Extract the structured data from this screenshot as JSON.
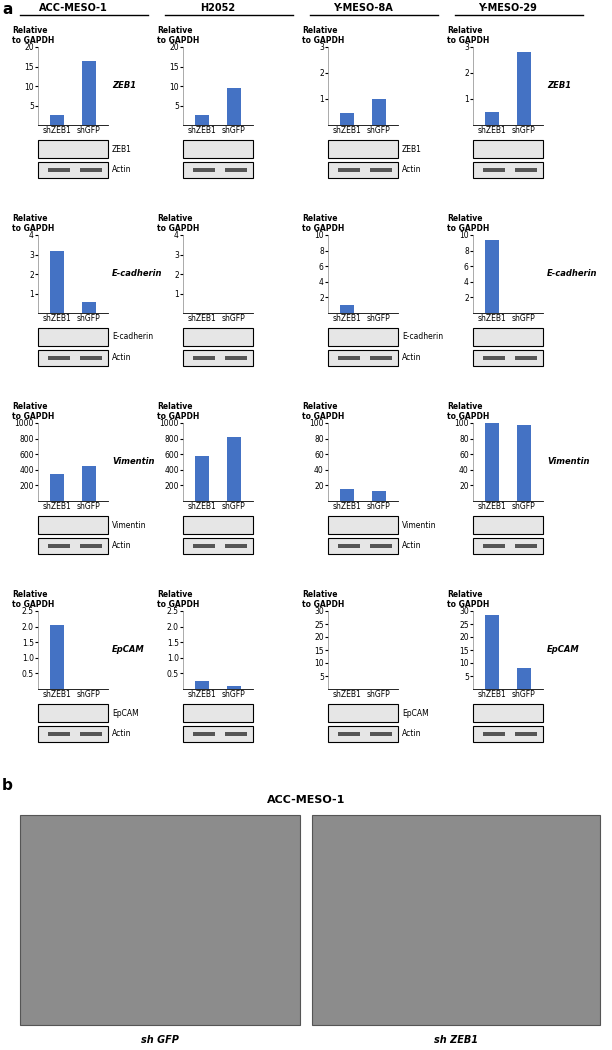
{
  "panel_labels": [
    "a",
    "b"
  ],
  "columns": [
    "ACC-MESO-1",
    "H2052",
    "Y-MESO-8A",
    "Y-MESO-29"
  ],
  "rows": [
    {
      "gene": "ZEB1",
      "blots": [
        "ZEB1",
        "Actin"
      ]
    },
    {
      "gene": "E-cadherin",
      "blots": [
        "E-cadherin",
        "Actin"
      ]
    },
    {
      "gene": "Vimentin",
      "blots": [
        "Vimentin",
        "Actin"
      ]
    },
    {
      "gene": "EpCAM",
      "blots": [
        "EpCAM",
        "Actin"
      ]
    }
  ],
  "chart_data": [
    {
      "type": "bar",
      "column": "ACC-MESO-1",
      "gene": "ZEB1",
      "ylabel": "Relative\nto GAPDH",
      "categories": [
        "shZEB1",
        "shGFP"
      ],
      "values": [
        2.5,
        16.5
      ],
      "color": "#4472c4",
      "ylim": [
        0,
        20
      ],
      "yticks": [
        5,
        10,
        15,
        20
      ]
    },
    {
      "type": "bar",
      "column": "H2052",
      "gene": "ZEB1",
      "ylabel": "Relative\nto GAPDH",
      "categories": [
        "shZEB1",
        "shGFP"
      ],
      "values": [
        2.5,
        9.5
      ],
      "color": "#4472c4",
      "ylim": [
        0,
        20
      ],
      "yticks": [
        5,
        10,
        15,
        20
      ]
    },
    {
      "type": "bar",
      "column": "Y-MESO-8A",
      "gene": "ZEB1",
      "ylabel": "Relative\nto GAPDH",
      "categories": [
        "shZEB1",
        "shGFP"
      ],
      "values": [
        0.45,
        1.0
      ],
      "color": "#4472c4",
      "ylim": [
        0,
        3
      ],
      "yticks": [
        1,
        2,
        3
      ]
    },
    {
      "type": "bar",
      "column": "Y-MESO-29",
      "gene": "ZEB1",
      "ylabel": "Relative\nto GAPDH",
      "categories": [
        "shZEB1",
        "shGFP"
      ],
      "values": [
        0.5,
        2.8
      ],
      "color": "#4472c4",
      "ylim": [
        0,
        3
      ],
      "yticks": [
        1,
        2,
        3
      ]
    },
    {
      "type": "bar",
      "column": "ACC-MESO-1",
      "gene": "E-cadherin",
      "ylabel": "Relative\nto GAPDH",
      "categories": [
        "shZEB1",
        "shGFP"
      ],
      "values": [
        3.2,
        0.55
      ],
      "color": "#4472c4",
      "ylim": [
        0,
        4
      ],
      "yticks": [
        1,
        2,
        3,
        4
      ]
    },
    {
      "type": "bar",
      "column": "H2052",
      "gene": "E-cadherin",
      "ylabel": "Relative\nto GAPDH",
      "categories": [
        "shZEB1",
        "shGFP"
      ],
      "values": [
        0.02,
        0
      ],
      "color": "#4472c4",
      "ylim": [
        0,
        4
      ],
      "yticks": [
        1,
        2,
        3,
        4
      ]
    },
    {
      "type": "bar",
      "column": "Y-MESO-8A",
      "gene": "E-cadherin",
      "ylabel": "Relative\nto GAPDH",
      "categories": [
        "shZEB1",
        "shGFP"
      ],
      "values": [
        1.0,
        0.05
      ],
      "color": "#4472c4",
      "ylim": [
        0,
        10
      ],
      "yticks": [
        2,
        4,
        6,
        8,
        10
      ]
    },
    {
      "type": "bar",
      "column": "Y-MESO-29",
      "gene": "E-cadherin",
      "ylabel": "Relative\nto GAPDH",
      "categories": [
        "shZEB1",
        "shGFP"
      ],
      "values": [
        9.3,
        0
      ],
      "color": "#4472c4",
      "ylim": [
        0,
        10
      ],
      "yticks": [
        2,
        4,
        6,
        8,
        10
      ]
    },
    {
      "type": "bar",
      "column": "ACC-MESO-1",
      "gene": "Vimentin",
      "ylabel": "Relative\nto GAPDH",
      "categories": [
        "shZEB1",
        "shGFP"
      ],
      "values": [
        350,
        450
      ],
      "color": "#4472c4",
      "ylim": [
        0,
        1000
      ],
      "yticks": [
        200,
        400,
        600,
        800,
        1000
      ]
    },
    {
      "type": "bar",
      "column": "H2052",
      "gene": "Vimentin",
      "ylabel": "Relative\nto GAPDH",
      "categories": [
        "shZEB1",
        "shGFP"
      ],
      "values": [
        580,
        820
      ],
      "color": "#4472c4",
      "ylim": [
        0,
        1000
      ],
      "yticks": [
        200,
        400,
        600,
        800,
        1000
      ]
    },
    {
      "type": "bar",
      "column": "Y-MESO-8A",
      "gene": "Vimentin",
      "ylabel": "Relative\nto GAPDH",
      "categories": [
        "shZEB1",
        "shGFP"
      ],
      "values": [
        15,
        13
      ],
      "color": "#4472c4",
      "ylim": [
        0,
        100
      ],
      "yticks": [
        20,
        40,
        60,
        80,
        100
      ]
    },
    {
      "type": "bar",
      "column": "Y-MESO-29",
      "gene": "Vimentin",
      "ylabel": "Relative\nto GAPDH",
      "categories": [
        "shZEB1",
        "shGFP"
      ],
      "values": [
        100,
        97
      ],
      "color": "#4472c4",
      "ylim": [
        0,
        100
      ],
      "yticks": [
        20,
        40,
        60,
        80,
        100
      ]
    },
    {
      "type": "bar",
      "column": "ACC-MESO-1",
      "gene": "EpCAM",
      "ylabel": "Relative\nto GAPDH",
      "categories": [
        "shZEB1",
        "shGFP"
      ],
      "values": [
        2.05,
        0
      ],
      "color": "#4472c4",
      "ylim": [
        0,
        2.5
      ],
      "yticks": [
        0.5,
        {
          "value": 1.0,
          "label": "1.0"
        },
        1.5,
        {
          "value": 2.0,
          "label": "2.0"
        },
        2.5
      ]
    },
    {
      "type": "bar",
      "column": "H2052",
      "gene": "EpCAM",
      "ylabel": "Relative\nto GAPDH",
      "categories": [
        "shZEB1",
        "shGFP"
      ],
      "values": [
        0.25,
        0.1
      ],
      "color": "#4472c4",
      "ylim": [
        0,
        2.5
      ],
      "yticks": [
        0.5,
        {
          "value": 1.0,
          "label": "1.0"
        },
        1.5,
        {
          "value": 2.0,
          "label": "2.0"
        },
        2.5
      ]
    },
    {
      "type": "bar",
      "column": "Y-MESO-8A",
      "gene": "EpCAM",
      "ylabel": "Relative\nto GAPDH",
      "categories": [
        "shZEB1",
        "shGFP"
      ],
      "values": [
        0,
        0
      ],
      "color": "#4472c4",
      "ylim": [
        0,
        30
      ],
      "yticks": [
        5,
        10,
        15,
        20,
        25,
        30
      ]
    },
    {
      "type": "bar",
      "column": "Y-MESO-29",
      "gene": "EpCAM",
      "ylabel": "Relative\nto GAPDH",
      "categories": [
        "shZEB1",
        "shGFP"
      ],
      "values": [
        28.5,
        8
      ],
      "color": "#4472c4",
      "ylim": [
        0,
        30
      ],
      "yticks": [
        5,
        10,
        15,
        20,
        25,
        30
      ]
    }
  ],
  "panel_b": {
    "title": "ACC-MESO-1",
    "captions": [
      "sh GFP",
      "sh ZEB1"
    ]
  }
}
